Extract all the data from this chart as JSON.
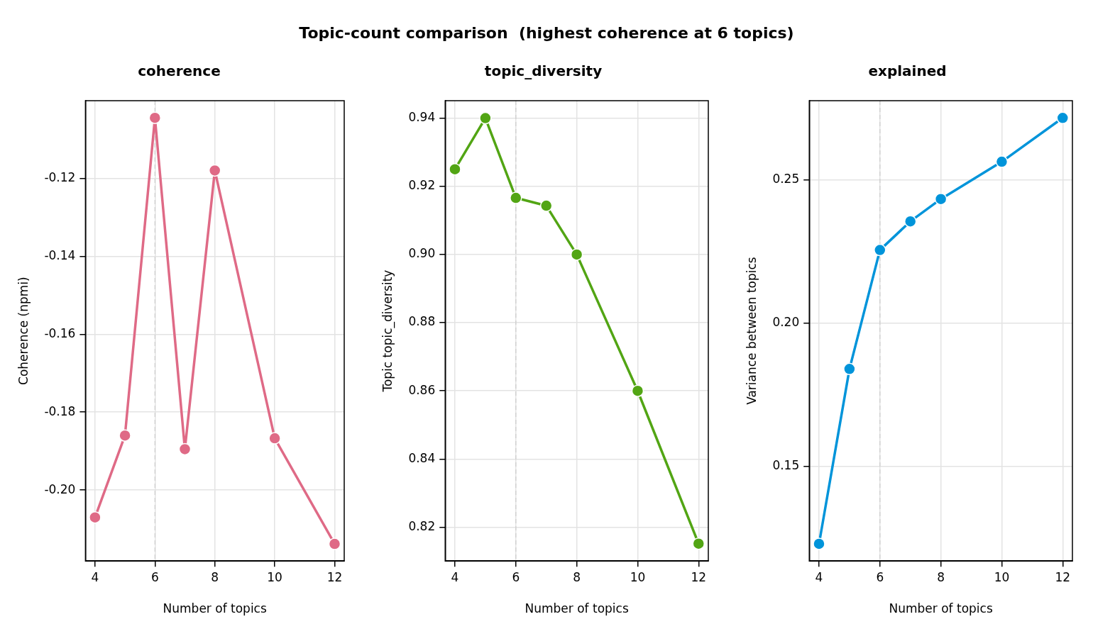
{
  "chart_data": [
    {
      "type": "line",
      "title": "coherence",
      "annotations": [
        "Topic-count comparison  (highest coherence at 6 topics)"
      ],
      "xlabel": "Number of topics",
      "ylabel": "Coherence (npmi)",
      "x": [
        4,
        5,
        6,
        7,
        8,
        10,
        12
      ],
      "series": [
        {
          "color": "#df6a86",
          "values": [
            -0.207,
            -0.186,
            -0.1045,
            -0.1895,
            -0.118,
            -0.1867,
            -0.2138
          ]
        }
      ],
      "xlim": [
        3.68,
        12.32
      ],
      "xticks": [
        4,
        6,
        8,
        10,
        12
      ],
      "ylim": [
        -0.2182,
        -0.1001
      ],
      "yticks": [
        {
          "value": -0.2,
          "label": "-0.20"
        },
        -0.18,
        -0.16,
        -0.14,
        -0.12
      ],
      "ref_lines": [
        {
          "axis": "x",
          "value": 6,
          "color": "#cccccc",
          "line_style": "dashed"
        }
      ],
      "grid": true,
      "legend": false,
      "marker": "circle",
      "line_style": "solid"
    },
    {
      "type": "line",
      "title": "topic_diversity",
      "xlabel": "Number of topics",
      "ylabel": "Topic topic_diversity",
      "x": [
        4,
        5,
        6,
        7,
        8,
        10,
        12
      ],
      "series": [
        {
          "color": "#52a514",
          "values": [
            0.925,
            0.94,
            0.9166,
            0.9143,
            0.9,
            0.86,
            0.8152
          ]
        }
      ],
      "xlim": [
        3.68,
        12.32
      ],
      "xticks": [
        4,
        6,
        8,
        10,
        12
      ],
      "ylim": [
        0.8101,
        0.9451
      ],
      "yticks": [
        {
          "value": 0.82,
          "label": "0.82"
        },
        {
          "value": 0.84,
          "label": "0.84"
        },
        {
          "value": 0.86,
          "label": "0.86"
        },
        {
          "value": 0.88,
          "label": "0.88"
        },
        {
          "value": 0.9,
          "label": "0.90"
        },
        {
          "value": 0.92,
          "label": "0.92"
        },
        {
          "value": 0.94,
          "label": "0.94"
        }
      ],
      "ref_lines": [
        {
          "axis": "x",
          "value": 6,
          "color": "#cccccc",
          "line_style": "dashed"
        }
      ],
      "grid": true,
      "legend": false,
      "marker": "circle",
      "line_style": "solid"
    },
    {
      "type": "line",
      "title": "explained",
      "xlabel": "Number of topics",
      "ylabel": "Variance between topics",
      "x": [
        4,
        5,
        6,
        7,
        8,
        10,
        12
      ],
      "series": [
        {
          "color": "#0094da",
          "values": [
            0.123,
            0.184,
            0.2255,
            0.2355,
            0.2433,
            0.2563,
            0.2716
          ]
        }
      ],
      "xlim": [
        3.68,
        12.32
      ],
      "xticks": [
        4,
        6,
        8,
        10,
        12
      ],
      "ylim": [
        0.117,
        0.2776
      ],
      "yticks": [
        0.15,
        {
          "value": 0.2,
          "label": "0.20"
        },
        0.25
      ],
      "ref_lines": [
        {
          "axis": "x",
          "value": 6,
          "color": "#cccccc",
          "line_style": "dashed"
        }
      ],
      "grid": true,
      "legend": false,
      "marker": "circle",
      "line_style": "solid"
    }
  ]
}
